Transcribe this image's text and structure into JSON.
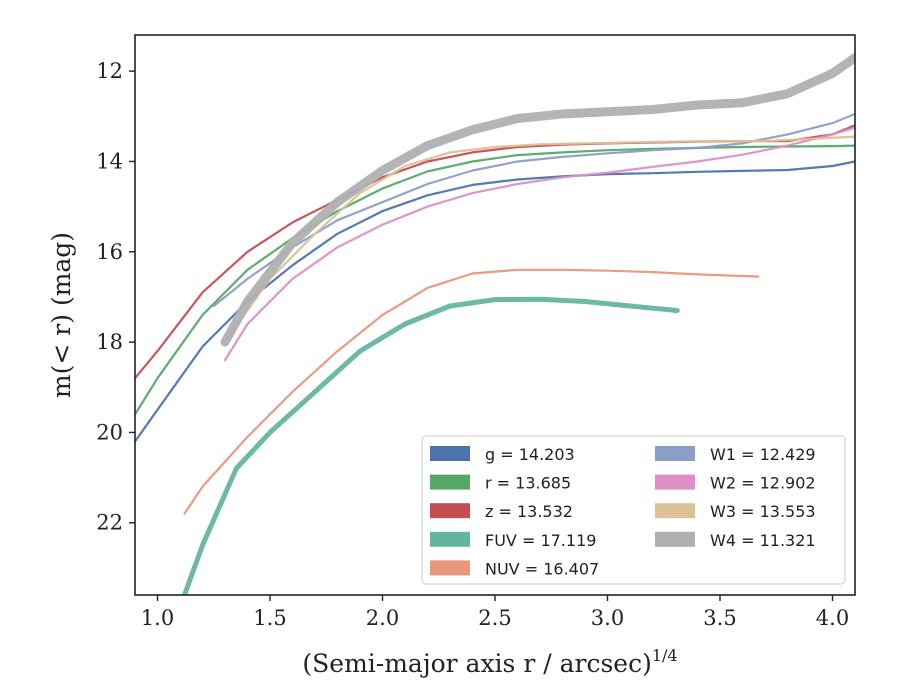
{
  "chart_data": {
    "type": "line",
    "xlabel": "(Semi-major axis r / arcsec)",
    "xlabel_var": "r",
    "xlabel_exp": "1/4",
    "ylabel": "m(< r) (mag)",
    "xlim": [
      0.9,
      4.1
    ],
    "ylim": [
      23.6,
      11.2
    ],
    "y_inverted": true,
    "x_ticks": [
      "1.0",
      "1.5",
      "2.0",
      "2.5",
      "3.0",
      "3.5",
      "4.0"
    ],
    "y_ticks": [
      "12",
      "14",
      "16",
      "18",
      "20",
      "22"
    ],
    "grid": false,
    "legend_position": "lower-right",
    "series": [
      {
        "name": "g",
        "label": "g = 14.203",
        "color": "#4c72b0",
        "x": [
          0.9,
          1.0,
          1.2,
          1.4,
          1.6,
          1.8,
          2.0,
          2.2,
          2.4,
          2.6,
          2.8,
          3.0,
          3.2,
          3.4,
          3.6,
          3.8,
          4.0,
          4.1
        ],
        "y": [
          20.2,
          19.5,
          18.1,
          17.1,
          16.3,
          15.6,
          15.1,
          14.75,
          14.52,
          14.4,
          14.33,
          14.28,
          14.26,
          14.23,
          14.21,
          14.19,
          14.1,
          14.0
        ]
      },
      {
        "name": "r",
        "label": "r = 13.685",
        "color": "#55a868",
        "x": [
          0.9,
          1.0,
          1.2,
          1.4,
          1.6,
          1.8,
          2.0,
          2.2,
          2.4,
          2.6,
          2.8,
          3.0,
          3.2,
          3.4,
          3.6,
          3.8,
          4.0,
          4.1
        ],
        "y": [
          19.6,
          18.8,
          17.4,
          16.4,
          15.7,
          15.1,
          14.6,
          14.22,
          14.0,
          13.86,
          13.8,
          13.75,
          13.72,
          13.7,
          13.68,
          13.67,
          13.66,
          13.65
        ]
      },
      {
        "name": "z",
        "label": "z = 13.532",
        "color": "#c44e52",
        "x": [
          0.9,
          1.0,
          1.2,
          1.4,
          1.6,
          1.8,
          2.0,
          2.2,
          2.4,
          2.6,
          2.8,
          3.0,
          3.2,
          3.4,
          3.6,
          3.8,
          4.0,
          4.1
        ],
        "y": [
          18.8,
          18.2,
          16.9,
          16.0,
          15.35,
          14.85,
          14.35,
          14.0,
          13.8,
          13.68,
          13.63,
          13.6,
          13.58,
          13.56,
          13.55,
          13.55,
          13.4,
          13.2
        ]
      },
      {
        "name": "FUV",
        "label": "FUV = 17.119",
        "color": "#64b5a0",
        "x": [
          1.12,
          1.2,
          1.35,
          1.5,
          1.7,
          1.9,
          2.1,
          2.3,
          2.5,
          2.7,
          2.9,
          3.1,
          3.31
        ],
        "y": [
          23.6,
          22.5,
          20.8,
          20.0,
          19.1,
          18.2,
          17.6,
          17.2,
          17.06,
          17.05,
          17.1,
          17.2,
          17.3
        ]
      },
      {
        "name": "NUV",
        "label": "NUV = 16.407",
        "color": "#e9967a",
        "x": [
          1.12,
          1.2,
          1.4,
          1.6,
          1.8,
          2.0,
          2.2,
          2.4,
          2.6,
          2.8,
          3.0,
          3.2,
          3.4,
          3.67
        ],
        "y": [
          21.8,
          21.2,
          20.1,
          19.1,
          18.2,
          17.4,
          16.8,
          16.48,
          16.4,
          16.4,
          16.42,
          16.45,
          16.5,
          16.55
        ]
      },
      {
        "name": "W1",
        "label": "W1 = 12.429",
        "color": "#8c9dc8",
        "x": [
          1.25,
          1.4,
          1.6,
          1.8,
          2.0,
          2.2,
          2.4,
          2.6,
          2.8,
          3.0,
          3.2,
          3.4,
          3.6,
          3.8,
          4.0,
          4.1
        ],
        "y": [
          17.2,
          16.6,
          15.9,
          15.3,
          14.9,
          14.5,
          14.2,
          14.0,
          13.9,
          13.82,
          13.75,
          13.7,
          13.6,
          13.4,
          13.15,
          12.95
        ]
      },
      {
        "name": "W2",
        "label": "W2 = 12.902",
        "color": "#dd8fc6",
        "x": [
          1.3,
          1.4,
          1.6,
          1.8,
          2.0,
          2.2,
          2.4,
          2.6,
          2.8,
          3.0,
          3.2,
          3.4,
          3.6,
          3.8,
          4.0,
          4.1
        ],
        "y": [
          18.4,
          17.6,
          16.6,
          15.9,
          15.4,
          15.0,
          14.7,
          14.5,
          14.35,
          14.25,
          14.12,
          14.0,
          13.85,
          13.65,
          13.4,
          13.25
        ]
      },
      {
        "name": "W3",
        "label": "W3 = 13.553",
        "color": "#dcc096",
        "x": [
          1.3,
          1.5,
          1.7,
          1.9,
          2.1,
          2.3,
          2.5,
          2.7,
          2.9,
          3.1,
          3.3,
          3.5,
          3.7,
          3.9,
          4.1
        ],
        "y": [
          18.0,
          16.6,
          15.6,
          14.7,
          14.1,
          13.8,
          13.68,
          13.62,
          13.6,
          13.58,
          13.56,
          13.55,
          13.55,
          13.5,
          13.45
        ]
      },
      {
        "name": "W4",
        "label": "W4 = 11.321",
        "color": "#b0b0b0",
        "x": [
          1.3,
          1.4,
          1.6,
          1.8,
          2.0,
          2.2,
          2.4,
          2.6,
          2.8,
          3.0,
          3.2,
          3.4,
          3.6,
          3.8,
          4.0,
          4.1
        ],
        "y": [
          18.0,
          17.1,
          15.8,
          14.9,
          14.2,
          13.65,
          13.3,
          13.05,
          12.95,
          12.9,
          12.85,
          12.75,
          12.7,
          12.5,
          12.05,
          11.7
        ]
      }
    ]
  }
}
